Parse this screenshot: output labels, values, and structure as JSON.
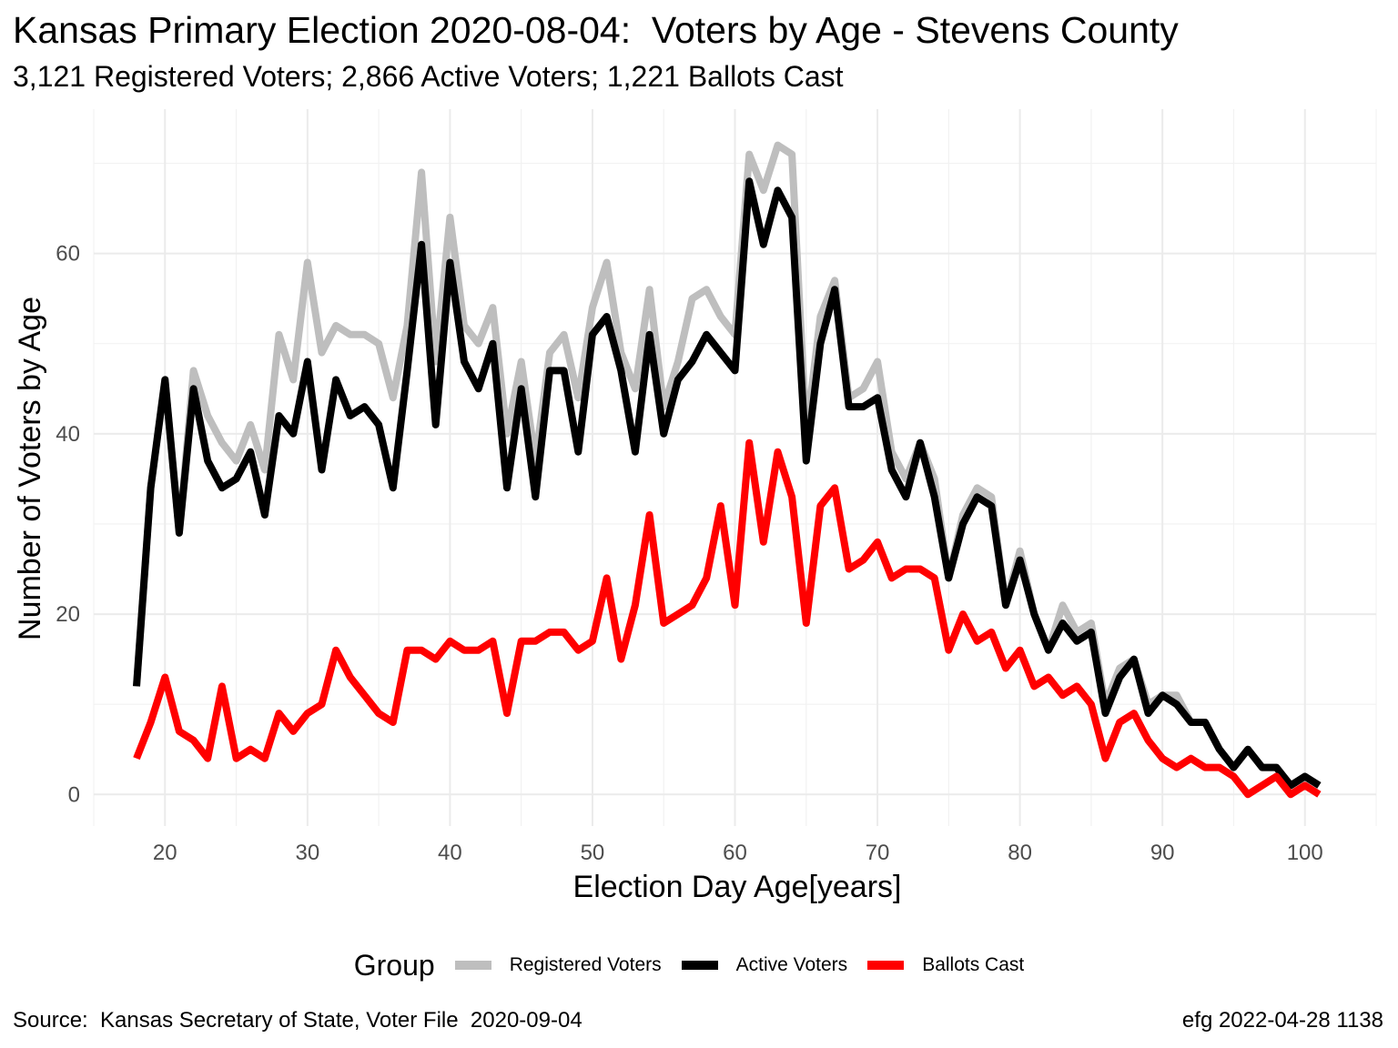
{
  "title": "Kansas Primary Election 2020-08-04:  Voters by Age - Stevens County",
  "subtitle": "3,121 Registered Voters; 2,866 Active Voters; 1,221 Ballots Cast",
  "caption_left": "Source:  Kansas Secretary of State, Voter File  2020-09-04",
  "caption_right": "efg 2022-04-28 1138",
  "legend": {
    "title": "Group",
    "position": "bottom",
    "items": [
      {
        "label": "Registered Voters",
        "color": "#BEBEBE"
      },
      {
        "label": "Active Voters",
        "color": "#000000"
      },
      {
        "label": "Ballots Cast",
        "color": "#FF0000"
      }
    ]
  },
  "chart_data": {
    "type": "line",
    "xlabel": "Election Day Age[years]",
    "ylabel": "Number of Voters by Age",
    "xlim": [
      15,
      105
    ],
    "ylim": [
      -3.5,
      76
    ],
    "xticks": [
      20,
      30,
      40,
      50,
      60,
      70,
      80,
      90,
      100
    ],
    "yticks": [
      0,
      20,
      40,
      60
    ],
    "grid": true,
    "x_start": 18,
    "series": [
      {
        "name": "Registered Voters",
        "color": "#BEBEBE",
        "values": [
          12,
          34,
          46,
          29,
          47,
          42,
          39,
          37,
          41,
          36,
          51,
          46,
          59,
          49,
          52,
          51,
          51,
          50,
          44,
          52,
          69,
          48,
          64,
          52,
          50,
          54,
          40,
          48,
          37,
          49,
          51,
          44,
          54,
          59,
          49,
          45,
          56,
          43,
          48,
          55,
          56,
          53,
          51,
          71,
          67,
          72,
          71,
          40,
          53,
          57,
          44,
          45,
          48,
          38,
          35,
          39,
          35,
          24,
          31,
          34,
          33,
          21,
          27,
          20,
          16,
          21,
          18,
          19,
          10,
          14,
          15,
          10,
          11,
          11,
          8,
          8,
          5,
          3,
          5,
          3,
          3,
          1,
          2,
          1
        ]
      },
      {
        "name": "Active Voters",
        "color": "#000000",
        "values": [
          12,
          34,
          46,
          29,
          45,
          37,
          34,
          35,
          38,
          31,
          42,
          40,
          48,
          36,
          46,
          42,
          43,
          41,
          34,
          47,
          61,
          41,
          59,
          48,
          45,
          50,
          34,
          45,
          33,
          47,
          47,
          38,
          51,
          53,
          47,
          38,
          51,
          40,
          46,
          48,
          51,
          49,
          47,
          68,
          61,
          67,
          64,
          37,
          50,
          56,
          43,
          43,
          44,
          36,
          33,
          39,
          33,
          24,
          30,
          33,
          32,
          21,
          26,
          20,
          16,
          19,
          17,
          18,
          9,
          13,
          15,
          9,
          11,
          10,
          8,
          8,
          5,
          3,
          5,
          3,
          3,
          1,
          2,
          1
        ]
      },
      {
        "name": "Ballots Cast",
        "color": "#FF0000",
        "values": [
          4,
          8,
          13,
          7,
          6,
          4,
          12,
          4,
          5,
          4,
          9,
          7,
          9,
          10,
          16,
          13,
          11,
          9,
          8,
          16,
          16,
          15,
          17,
          16,
          16,
          17,
          9,
          17,
          17,
          18,
          18,
          16,
          17,
          24,
          15,
          21,
          31,
          19,
          20,
          21,
          24,
          32,
          21,
          39,
          28,
          38,
          33,
          19,
          32,
          34,
          25,
          26,
          28,
          24,
          25,
          25,
          24,
          16,
          20,
          17,
          18,
          14,
          16,
          12,
          13,
          11,
          12,
          10,
          4,
          8,
          9,
          6,
          4,
          3,
          4,
          3,
          3,
          2,
          0,
          1,
          2,
          0,
          1,
          0
        ]
      }
    ]
  }
}
